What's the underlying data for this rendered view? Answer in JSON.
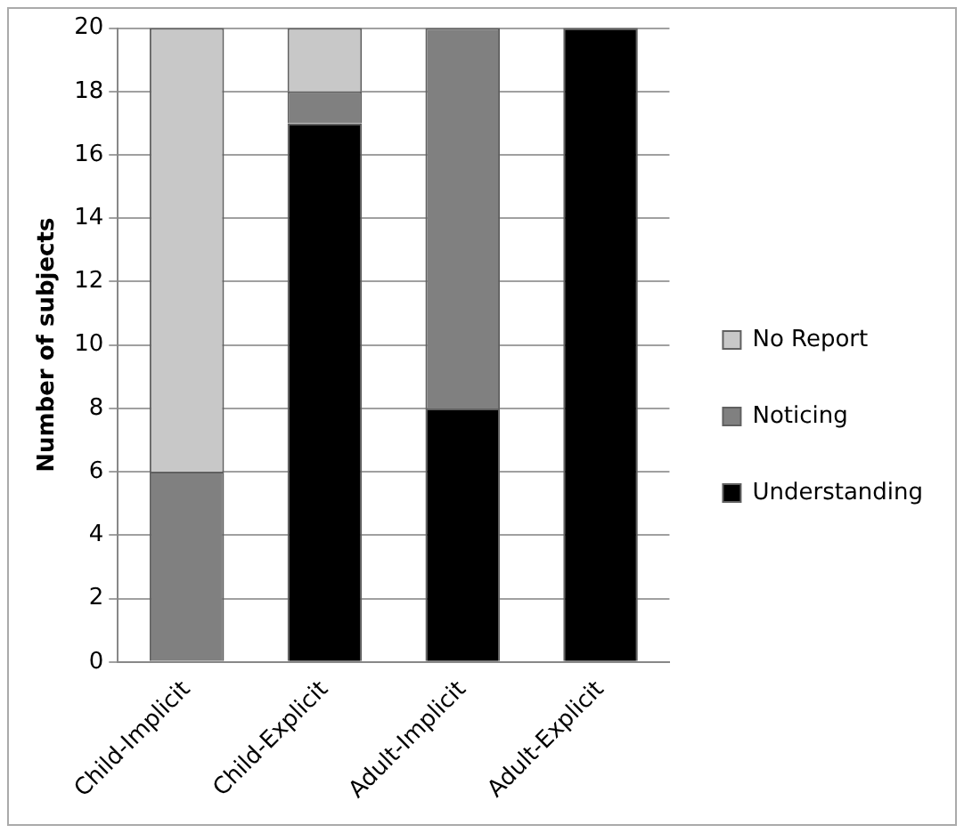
{
  "chart_data": {
    "type": "bar",
    "stacked": true,
    "ylabel": "Number of subjects",
    "categories": [
      "Child-Implicit",
      "Child-Explicit",
      "Adult-Implicit",
      "Adult-Explicit"
    ],
    "series": [
      {
        "name": "Understanding",
        "color": "#000000",
        "values": [
          0,
          17,
          8,
          20
        ]
      },
      {
        "name": "Noticing",
        "color": "#808080",
        "values": [
          6,
          1,
          12,
          0
        ]
      },
      {
        "name": "No Report",
        "color": "#c8c8c8",
        "values": [
          14,
          2,
          0,
          0
        ]
      }
    ],
    "ylim": [
      0,
      20
    ],
    "yticks": [
      0,
      2,
      4,
      6,
      8,
      10,
      12,
      14,
      16,
      18,
      20
    ],
    "grid": "y",
    "legend": "right"
  }
}
